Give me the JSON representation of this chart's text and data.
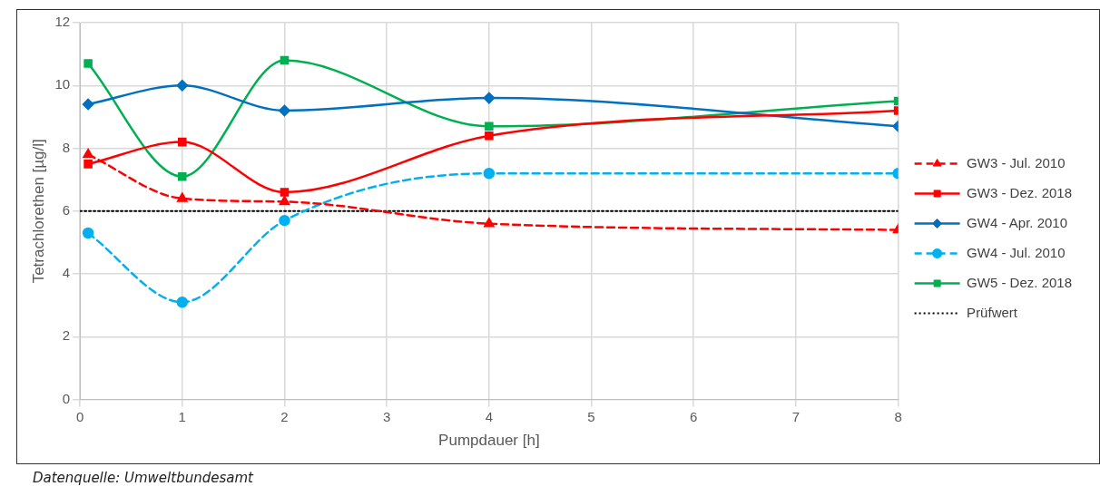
{
  "chart_data": {
    "type": "line",
    "xlabel": "Pumpdauer [h]",
    "ylabel": "Tetrachlorethen [µg/l]",
    "x": [
      0.08,
      1,
      2,
      4,
      8
    ],
    "series": [
      {
        "name": "GW3 - Jul. 2010",
        "color": "#ff0000",
        "values": [
          7.8,
          6.4,
          6.3,
          5.6,
          5.4
        ],
        "marker": "triangle",
        "line_style": "dashed"
      },
      {
        "name": "GW3 - Dez. 2018",
        "color": "#ff0000",
        "values": [
          7.5,
          8.2,
          6.6,
          8.4,
          9.2
        ],
        "marker": "square",
        "line_style": "solid"
      },
      {
        "name": "GW4 - Apr. 2010",
        "color": "#0070c0",
        "values": [
          9.4,
          10.0,
          9.2,
          9.6,
          8.7
        ],
        "marker": "diamond",
        "line_style": "solid"
      },
      {
        "name": "GW4 - Jul. 2010",
        "color": "#00b0f0",
        "values": [
          5.3,
          3.1,
          5.7,
          7.2,
          7.2
        ],
        "marker": "circle",
        "line_style": "dashed"
      },
      {
        "name": "GW5 - Dez. 2018",
        "color": "#00b050",
        "values": [
          10.7,
          7.1,
          10.8,
          8.7,
          9.5
        ],
        "marker": "square",
        "line_style": "solid"
      },
      {
        "name": "Prüfwert",
        "color": "#000000",
        "x": [
          0,
          8
        ],
        "values": [
          6,
          6
        ],
        "marker": "none",
        "line_style": "dotted"
      }
    ],
    "xlim": [
      0,
      8
    ],
    "xticks": [
      0,
      1,
      2,
      3,
      4,
      5,
      6,
      7,
      8
    ],
    "ylim": [
      0,
      12
    ],
    "yticks": [
      0,
      2,
      4,
      6,
      8,
      10,
      12
    ],
    "grid": true,
    "legend": "right",
    "annotations": [
      "Datenquelle: Umweltbundesamt"
    ]
  }
}
